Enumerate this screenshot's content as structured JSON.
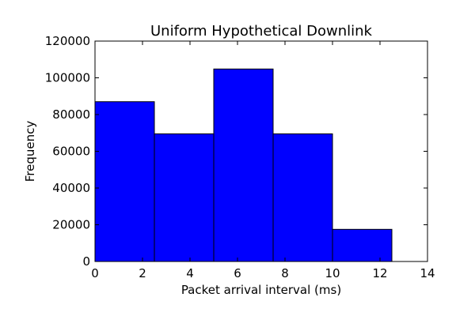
{
  "chart_data": {
    "type": "bar",
    "title": "Uniform Hypothetical Downlink",
    "xlabel": "Packet arrival interval (ms)",
    "ylabel": "Frequency",
    "bins": [
      {
        "x0": 0,
        "x1": 2.5,
        "value": 87000
      },
      {
        "x0": 2.5,
        "x1": 5,
        "value": 69500
      },
      {
        "x0": 5,
        "x1": 7.5,
        "value": 104800
      },
      {
        "x0": 7.5,
        "x1": 10,
        "value": 69500
      },
      {
        "x0": 10,
        "x1": 12.5,
        "value": 17500
      }
    ],
    "xlim": [
      0,
      14
    ],
    "ylim": [
      0,
      120000
    ],
    "xticks": [
      "0",
      "2",
      "4",
      "6",
      "8",
      "10",
      "12",
      "14"
    ],
    "yticks": [
      "0",
      "20000",
      "40000",
      "60000",
      "80000",
      "100000",
      "120000"
    ],
    "grid": false,
    "bar_color": "#0000ff",
    "edge_color": "#000000"
  }
}
